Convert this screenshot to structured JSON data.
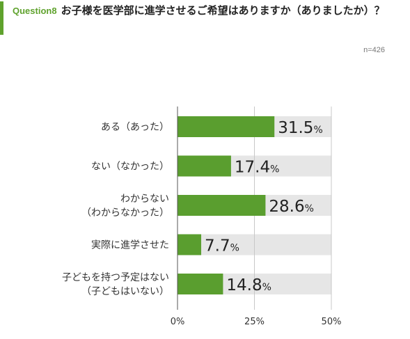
{
  "question": {
    "tag": "Question8",
    "text": "お子様を医学部に進学させるご希望はありますか（ありましたか）？",
    "sample": "n=426"
  },
  "chart_data": {
    "type": "bar",
    "orientation": "horizontal",
    "categories": [
      [
        "ある（あった）"
      ],
      [
        "ない（なかった）"
      ],
      [
        "わからない",
        "（わからなかった）"
      ],
      [
        "実際に進学させた"
      ],
      [
        "子どもを持つ予定はない",
        "（子どもはいない）"
      ]
    ],
    "values": [
      31.5,
      17.4,
      28.6,
      7.7,
      14.8
    ],
    "value_suffix": "%",
    "xlim": [
      0,
      50
    ],
    "xticks": [
      0,
      25,
      50
    ],
    "xtick_labels": [
      "0%",
      "25%",
      "50%"
    ],
    "grid": true,
    "colors": {
      "bar": "#5a9e2f",
      "track": "#e6e6e6",
      "grid": "#c8c8c8"
    }
  }
}
